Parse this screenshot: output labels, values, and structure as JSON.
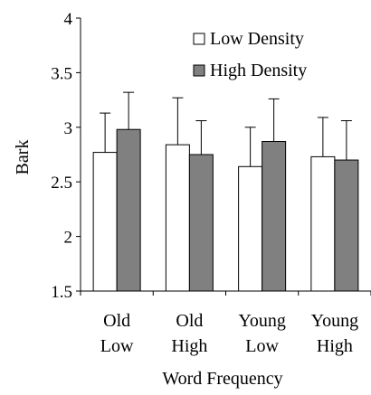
{
  "chart_data": {
    "type": "bar",
    "title": "",
    "xlabel": "Word Frequency",
    "ylabel": "Bark",
    "ylim": [
      1.5,
      4
    ],
    "yticks": [
      "1.5",
      "2",
      "2.5",
      "3",
      "3.5",
      "4"
    ],
    "yticks_values": [
      1.5,
      2,
      2.5,
      3,
      3.5,
      4
    ],
    "categories": [
      {
        "line1": "Old",
        "line2": "Low"
      },
      {
        "line1": "Old",
        "line2": "High"
      },
      {
        "line1": "Young",
        "line2": "Low"
      },
      {
        "line1": "Young",
        "line2": "High"
      }
    ],
    "series": [
      {
        "name": "Low Density",
        "color": "#ffffff",
        "values": [
          2.77,
          2.84,
          2.64,
          2.73
        ],
        "error": [
          0.36,
          0.43,
          0.36,
          0.36
        ]
      },
      {
        "name": "High Density",
        "color": "#808080",
        "values": [
          2.98,
          2.75,
          2.87,
          2.7
        ],
        "error": [
          0.34,
          0.31,
          0.39,
          0.36
        ]
      }
    ],
    "grid": false,
    "legend_position": "top-right"
  }
}
